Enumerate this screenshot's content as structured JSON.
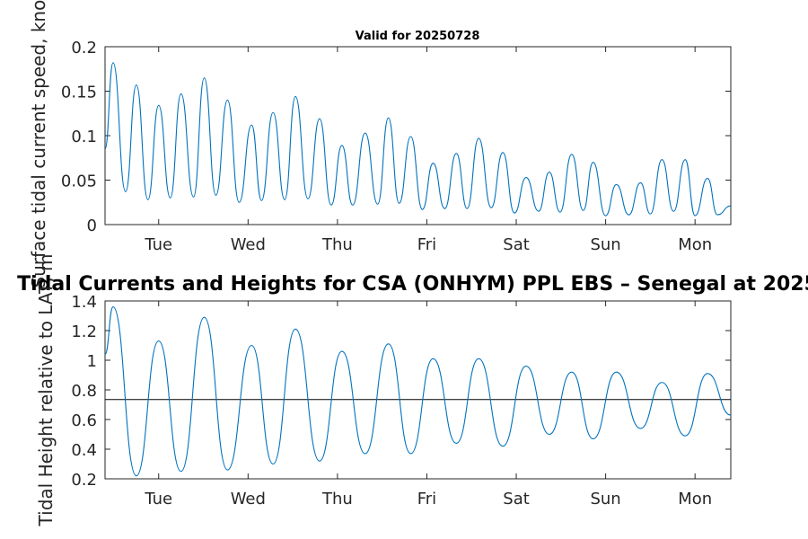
{
  "colors": {
    "line": "#0072BD",
    "axis": "#262626",
    "ref_line": "#000000",
    "background": "#ffffff"
  },
  "chart_data": [
    {
      "type": "line",
      "title": "Valid for 20250728",
      "ylabel": "Surface tidal current speed, knots",
      "xlabel": "",
      "ylim": [
        0,
        0.2
      ],
      "yticks": [
        0,
        0.05,
        0.1,
        0.15,
        0.2
      ],
      "ytick_labels": [
        "0",
        "0.05",
        "0.1",
        "0.15",
        "0.2"
      ],
      "xlim": [
        0,
        7
      ],
      "xticks": [
        0.6,
        1.6,
        2.6,
        3.6,
        4.6,
        5.6,
        6.6
      ],
      "xtick_labels": [
        "Tue",
        "Wed",
        "Thu",
        "Fri",
        "Sat",
        "Sun",
        "Mon"
      ],
      "grid": false,
      "series": [
        {
          "x": [
            0.0,
            0.09,
            0.23,
            0.35,
            0.48,
            0.6,
            0.73,
            0.85,
            0.99,
            1.11,
            1.24,
            1.37,
            1.5,
            1.64,
            1.75,
            1.88,
            2.01,
            2.13,
            2.27,
            2.4,
            2.53,
            2.65,
            2.77,
            2.91,
            3.05,
            3.17,
            3.29,
            3.42,
            3.55,
            3.67,
            3.8,
            3.93,
            4.05,
            4.18,
            4.32,
            4.45,
            4.58,
            4.71,
            4.85,
            4.97,
            5.09,
            5.22,
            5.35,
            5.46,
            5.6,
            5.72,
            5.86,
            5.99,
            6.1,
            6.23,
            6.36,
            6.49,
            6.6,
            6.74,
            6.85,
            7.0
          ],
          "values": [
            0.085,
            0.182,
            0.037,
            0.157,
            0.028,
            0.134,
            0.03,
            0.147,
            0.031,
            0.165,
            0.033,
            0.14,
            0.025,
            0.112,
            0.027,
            0.126,
            0.028,
            0.144,
            0.029,
            0.119,
            0.022,
            0.089,
            0.022,
            0.103,
            0.023,
            0.12,
            0.024,
            0.099,
            0.017,
            0.069,
            0.018,
            0.08,
            0.018,
            0.097,
            0.019,
            0.081,
            0.013,
            0.053,
            0.015,
            0.059,
            0.014,
            0.079,
            0.016,
            0.07,
            0.01,
            0.045,
            0.011,
            0.047,
            0.012,
            0.073,
            0.015,
            0.073,
            0.01,
            0.052,
            0.011,
            0.021
          ]
        }
      ]
    },
    {
      "type": "line",
      "title": "Tidal Currents and Heights for CSA (ONHYM) PPL EBS  – Senegal at 2025",
      "ylabel": "Tidal Height relative to LAT, m",
      "xlabel": "",
      "ylim": [
        0.2,
        1.4
      ],
      "yticks": [
        0.2,
        0.4,
        0.6,
        0.8,
        1.0,
        1.2,
        1.4
      ],
      "ytick_labels": [
        "0.2",
        "0.4",
        "0.6",
        "0.8",
        "1",
        "1.2",
        "1.4"
      ],
      "xlim": [
        0,
        7
      ],
      "xticks": [
        0.6,
        1.6,
        2.6,
        3.6,
        4.6,
        5.6,
        6.6
      ],
      "xtick_labels": [
        "Tue",
        "Wed",
        "Thu",
        "Fri",
        "Sat",
        "Sun",
        "Mon"
      ],
      "grid": false,
      "reference_line": {
        "y": 0.735
      },
      "series": [
        {
          "x": [
            0.0,
            0.09,
            0.35,
            0.6,
            0.85,
            1.11,
            1.37,
            1.64,
            1.88,
            2.13,
            2.4,
            2.65,
            2.91,
            3.17,
            3.42,
            3.67,
            3.93,
            4.18,
            4.45,
            4.71,
            4.97,
            5.22,
            5.46,
            5.72,
            5.99,
            6.23,
            6.49,
            6.74,
            7.0
          ],
          "values": [
            1.04,
            1.36,
            0.22,
            1.13,
            0.25,
            1.29,
            0.26,
            1.1,
            0.3,
            1.21,
            0.32,
            1.06,
            0.37,
            1.11,
            0.37,
            1.01,
            0.44,
            1.01,
            0.42,
            0.96,
            0.5,
            0.92,
            0.47,
            0.92,
            0.54,
            0.85,
            0.49,
            0.91,
            0.63
          ]
        }
      ]
    }
  ]
}
